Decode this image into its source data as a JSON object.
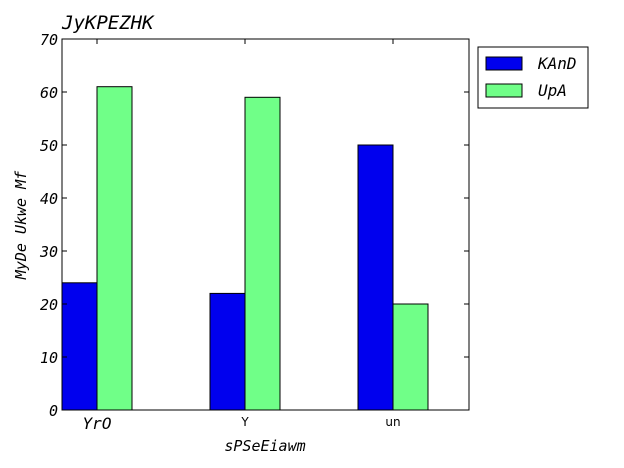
{
  "chart_data": {
    "type": "bar",
    "title": "JyKPEZHK",
    "xlabel": "sPSeEiawm",
    "ylabel": "MyDe Ukwe Mf",
    "categories": [
      "YrO",
      "Y",
      "un"
    ],
    "series": [
      {
        "name": "KAnD",
        "values": [
          24,
          22,
          50
        ],
        "color": "#0000ee"
      },
      {
        "name": "UpA",
        "values": [
          61,
          59,
          20
        ],
        "color": "#70ff88"
      }
    ],
    "ylim": [
      0,
      70
    ],
    "yticks": [
      "0",
      "10",
      "20",
      "30",
      "40",
      "50",
      "60",
      "70"
    ],
    "grid": false,
    "legend": "top-right, outside plot"
  }
}
